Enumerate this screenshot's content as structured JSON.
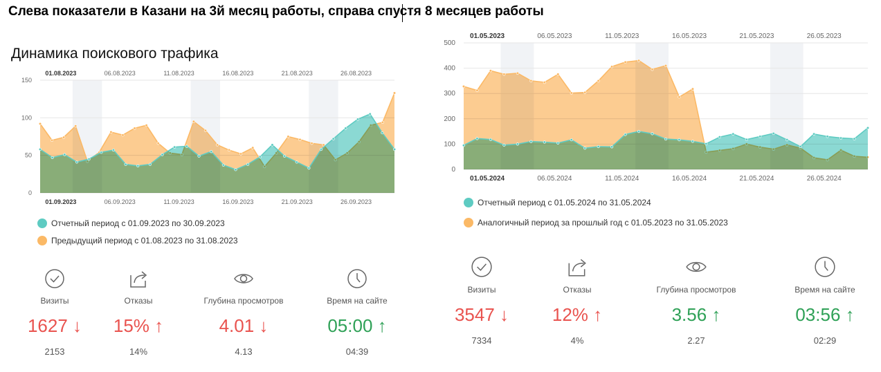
{
  "headline": "Слева показатели в Казани на 3й месяц работы, справа спустя 8 месяцев работы",
  "left": {
    "title": "Динамика поискового трафика",
    "chart_data": {
      "type": "area",
      "top_ticks": [
        "01.08.2023",
        "06.08.2023",
        "11.08.2023",
        "16.08.2023",
        "21.08.2023",
        "26.08.2023"
      ],
      "bottom_ticks": [
        "01.09.2023",
        "06.09.2023",
        "11.09.2023",
        "16.09.2023",
        "21.09.2023",
        "26.09.2023"
      ],
      "y_ticks": [
        "150",
        "100",
        "50",
        "0"
      ],
      "ylim": [
        0,
        150
      ],
      "series": [
        {
          "name": "Отчетный период с 01.09.2023 по 30.09.2023",
          "color": "#5ecbc2",
          "values": [
            58,
            47,
            51,
            41,
            45,
            54,
            57,
            38,
            36,
            38,
            51,
            61,
            62,
            49,
            55,
            37,
            31,
            38,
            48,
            64,
            49,
            41,
            33,
            58,
            72,
            86,
            98,
            105,
            80,
            58
          ]
        },
        {
          "name": "Предыдущий период с 01.08.2023 по 31.08.2023",
          "color": "#fbb966",
          "values": [
            92,
            70,
            74,
            89,
            42,
            54,
            81,
            77,
            86,
            90,
            66,
            53,
            51,
            95,
            83,
            64,
            57,
            52,
            60,
            35,
            53,
            75,
            71,
            66,
            64,
            44,
            53,
            68,
            90,
            94,
            133
          ]
        }
      ]
    },
    "legend": [
      {
        "label": "Отчетный период с 01.09.2023 по 30.09.2023",
        "color": "#5ecbc2"
      },
      {
        "label": "Предыдущий период с 01.08.2023 по 31.08.2023",
        "color": "#fbb966"
      }
    ],
    "metrics": [
      {
        "icon": "check-circle-icon",
        "label": "Визиты",
        "value": "1627 ↓",
        "prev": "2153",
        "status": "red"
      },
      {
        "icon": "share-icon",
        "label": "Отказы",
        "value": "15% ↑",
        "prev": "14%",
        "status": "red"
      },
      {
        "icon": "eye-icon",
        "label": "Глубина просмотров",
        "value": "4.01 ↓",
        "prev": "4.13",
        "status": "red"
      },
      {
        "icon": "clock-icon",
        "label": "Время на сайте",
        "value": "05:00 ↑",
        "prev": "04:39",
        "status": "green"
      }
    ]
  },
  "right": {
    "chart_data": {
      "type": "area",
      "top_ticks": [
        "01.05.2023",
        "06.05.2023",
        "11.05.2023",
        "16.05.2023",
        "21.05.2023",
        "26.05.2023"
      ],
      "bottom_ticks": [
        "01.05.2024",
        "06.05.2024",
        "11.05.2024",
        "16.05.2024",
        "21.05.2024",
        "26.05.2024"
      ],
      "y_ticks": [
        "500",
        "400",
        "300",
        "200",
        "100",
        "0"
      ],
      "ylim": [
        0,
        500
      ],
      "series": [
        {
          "name": "Отчетный период с 01.05.2024 по 31.05.2024",
          "color": "#5ecbc2",
          "values": [
            95,
            122,
            118,
            96,
            100,
            110,
            108,
            104,
            117,
            84,
            90,
            89,
            138,
            150,
            141,
            120,
            117,
            111,
            101,
            128,
            140,
            118,
            130,
            142,
            117,
            90,
            140,
            130,
            124,
            121,
            164
          ]
        },
        {
          "name": "Аналогичный период за прошлый год с 01.05.2023 по 31.05.2023",
          "color": "#fbb966",
          "values": [
            328,
            312,
            390,
            376,
            380,
            350,
            344,
            376,
            302,
            304,
            350,
            406,
            424,
            430,
            395,
            410,
            286,
            318,
            68,
            75,
            82,
            100,
            88,
            80,
            97,
            84,
            46,
            38,
            76,
            52,
            48
          ]
        }
      ]
    },
    "legend": [
      {
        "label": "Отчетный период с 01.05.2024 по 31.05.2024",
        "color": "#5ecbc2"
      },
      {
        "label": "Аналогичный период за прошлый год с 01.05.2023 по 31.05.2023",
        "color": "#fbb966"
      }
    ],
    "metrics": [
      {
        "icon": "check-circle-icon",
        "label": "Визиты",
        "value": "3547 ↓",
        "prev": "7334",
        "status": "red"
      },
      {
        "icon": "share-icon",
        "label": "Отказы",
        "value": "12% ↑",
        "prev": "4%",
        "status": "red"
      },
      {
        "icon": "eye-icon",
        "label": "Глубина просмотров",
        "value": "3.56 ↑",
        "prev": "2.27",
        "status": "green"
      },
      {
        "icon": "clock-icon",
        "label": "Время на сайте",
        "value": "03:56 ↑",
        "prev": "02:29",
        "status": "green"
      }
    ]
  }
}
